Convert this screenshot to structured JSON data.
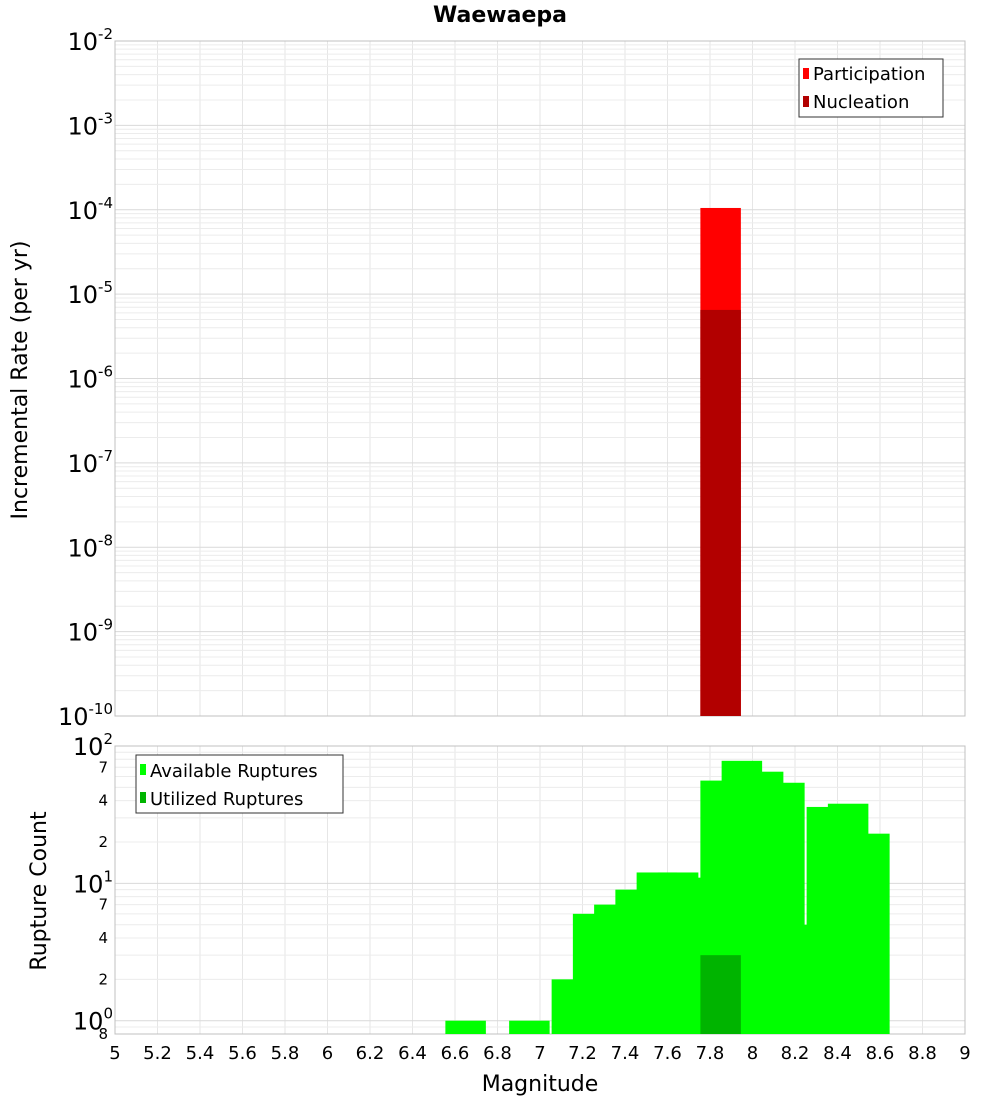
{
  "chart_data": [
    {
      "type": "bar",
      "title": "Waewaepa",
      "ylabel": "Incremental Rate (per yr)",
      "xlabel": "",
      "xlim": [
        5,
        9
      ],
      "ylim": [
        1e-10,
        0.01
      ],
      "yscale": "log",
      "grid": true,
      "legend_position": "top-right",
      "y_ticks": [
        {
          "base": "10",
          "exp": "-2"
        },
        {
          "base": "10",
          "exp": "-3"
        },
        {
          "base": "10",
          "exp": "-4"
        },
        {
          "base": "10",
          "exp": "-5"
        },
        {
          "base": "10",
          "exp": "-6"
        },
        {
          "base": "10",
          "exp": "-7"
        },
        {
          "base": "10",
          "exp": "-8"
        },
        {
          "base": "10",
          "exp": "-9"
        },
        {
          "base": "10",
          "exp": "-10"
        }
      ],
      "series": [
        {
          "name": "Participation",
          "color": "#ff0000",
          "x": [
            7.85
          ],
          "values": [
            0.000105
          ]
        },
        {
          "name": "Nucleation",
          "color": "#b20000",
          "x": [
            7.85
          ],
          "values": [
            6.5e-06
          ]
        }
      ]
    },
    {
      "type": "bar",
      "title": "",
      "ylabel": "Rupture Count",
      "xlabel": "Magnitude",
      "xlim": [
        5,
        9
      ],
      "ylim": [
        0.8,
        100
      ],
      "yscale": "log",
      "grid": true,
      "legend_position": "top-left",
      "x_ticks": [
        "5",
        "5.2",
        "5.4",
        "5.6",
        "5.8",
        "6",
        "6.2",
        "6.4",
        "6.6",
        "6.8",
        "7",
        "7.2",
        "7.4",
        "7.6",
        "7.8",
        "8",
        "8.2",
        "8.4",
        "8.6",
        "8.8",
        "9"
      ],
      "y_major_ticks": [
        {
          "base": "10",
          "exp": "2"
        },
        {
          "base": "10",
          "exp": "1"
        },
        {
          "base": "10",
          "exp": "0"
        }
      ],
      "y_minor_ticks": [
        "7",
        "4",
        "2",
        "7",
        "4",
        "2",
        "8"
      ],
      "series": [
        {
          "name": "Available Ruptures",
          "color": "#00ff00",
          "x": [
            6.65,
            6.95,
            7.15,
            7.25,
            7.35,
            7.45,
            7.55,
            7.65,
            7.75,
            7.85,
            7.95,
            8.05,
            8.15,
            8.25,
            8.35,
            8.45,
            8.55
          ],
          "values": [
            1,
            1,
            2,
            6,
            7,
            9,
            12,
            12,
            11,
            56,
            78,
            65,
            54,
            5,
            36,
            38,
            23
          ]
        },
        {
          "name": "Utilized Ruptures",
          "color": "#00b400",
          "x": [
            7.85
          ],
          "values": [
            3
          ]
        }
      ]
    }
  ]
}
